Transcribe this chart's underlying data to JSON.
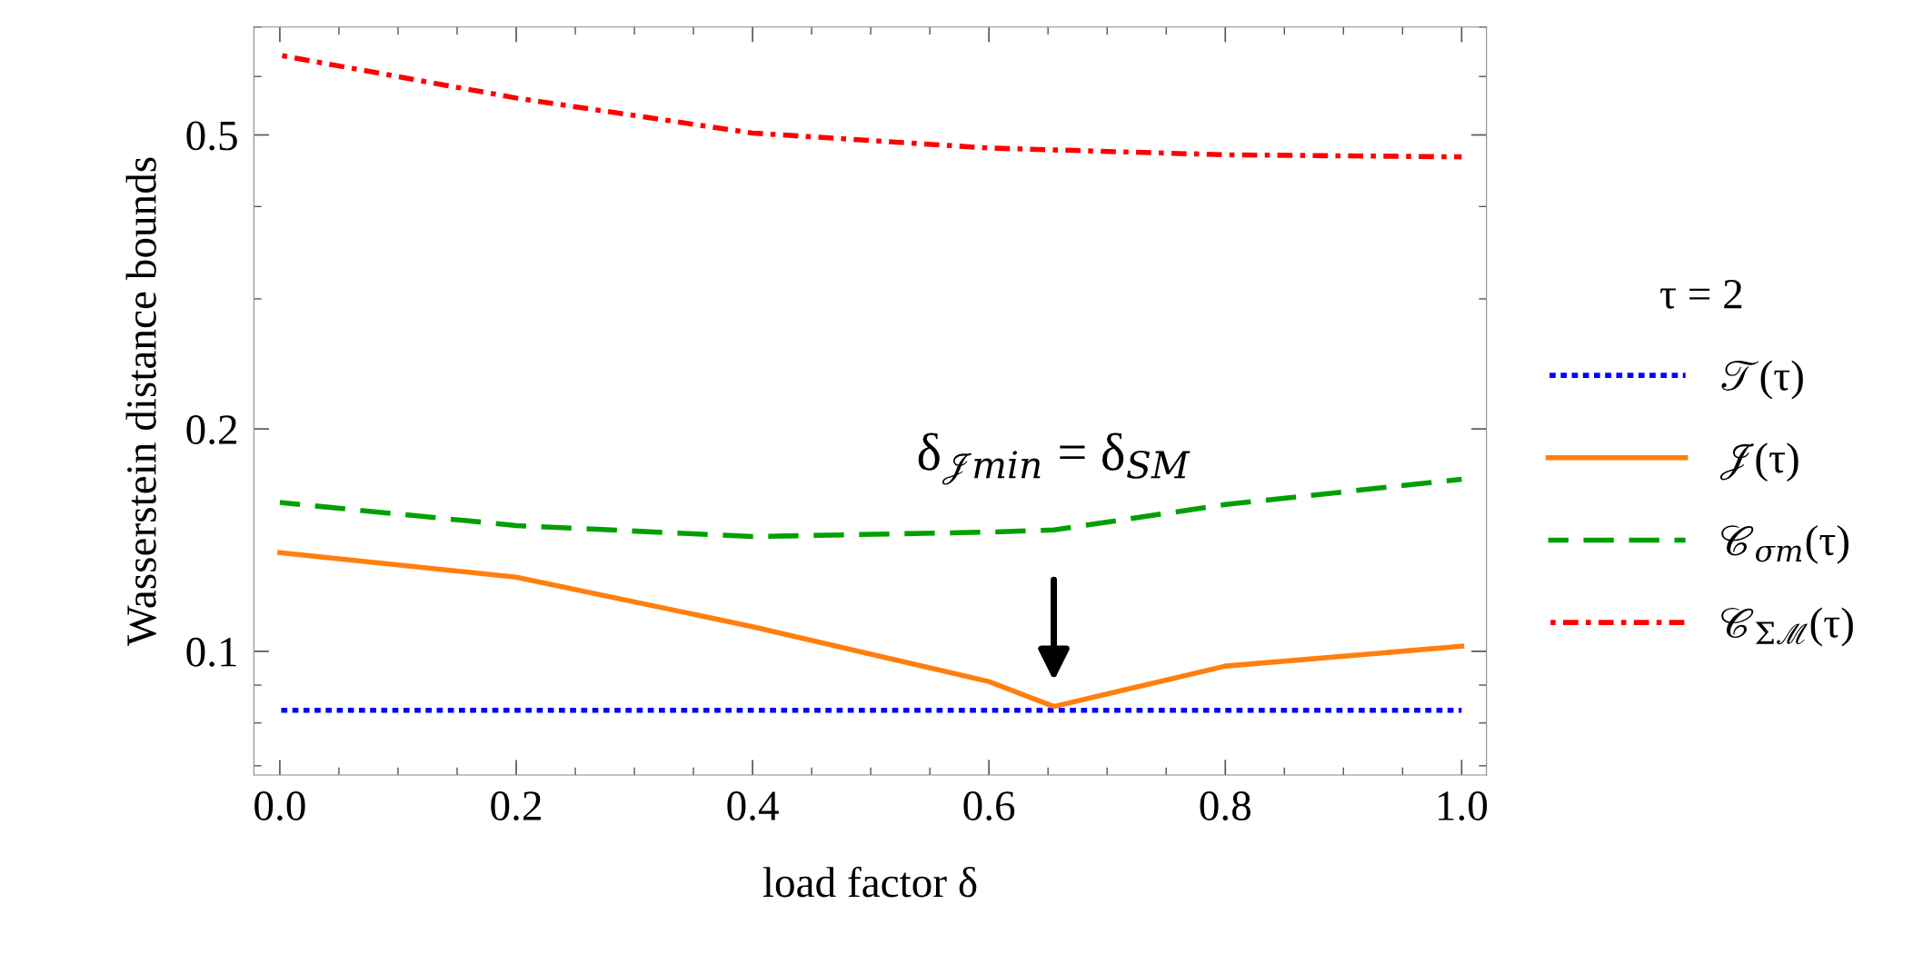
{
  "chart_data": {
    "type": "line",
    "xlabel": "load factor δ",
    "ylabel": "Wasserstein distance bounds",
    "legend_title": "τ = 2",
    "log": "y",
    "xlim": [
      -0.022,
      1.021
    ],
    "ylim": [
      0.068,
      0.7
    ],
    "xticks": [
      {
        "value": 0,
        "label": "0.0"
      },
      0.2,
      0.4,
      0.6,
      0.8,
      {
        "value": 1,
        "label": "1.0"
      }
    ],
    "yticks": [
      0.1,
      0.2,
      0.5
    ],
    "grid": false,
    "legend": "right",
    "series": [
      {
        "name": "𝒯(τ)",
        "color": "#0000ff",
        "line_style": "dotted",
        "x": [
          0,
          1
        ],
        "values": [
          0.0832,
          0.0832
        ]
      },
      {
        "name": "𝒥(τ)",
        "color": "#ff7f0e",
        "line_style": "solid",
        "x": [
          0,
          0.2,
          0.4,
          0.6,
          0.655,
          0.8,
          1.0
        ],
        "values": [
          0.136,
          0.126,
          0.108,
          0.091,
          0.0842,
          0.0955,
          0.1016
        ]
      },
      {
        "name": "𝒞$_{σm}$(τ)",
        "color": "#00a000",
        "line_style": "dashed",
        "x": [
          0,
          0.2,
          0.4,
          0.6,
          0.655,
          0.8,
          1.0
        ],
        "values": [
          0.159,
          0.148,
          0.143,
          0.145,
          0.146,
          0.158,
          0.171
        ]
      },
      {
        "name": "𝒞$_{Σℳ}$(τ)",
        "color": "#ff0000",
        "line_style": "dashdot",
        "x": [
          0,
          0.2,
          0.4,
          0.6,
          0.8,
          1.0
        ],
        "values": [
          0.641,
          0.561,
          0.503,
          0.48,
          0.47,
          0.467
        ]
      }
    ],
    "annotations": [
      "δ$_{𝒥min}$ = δ$_{SM}$"
    ]
  }
}
